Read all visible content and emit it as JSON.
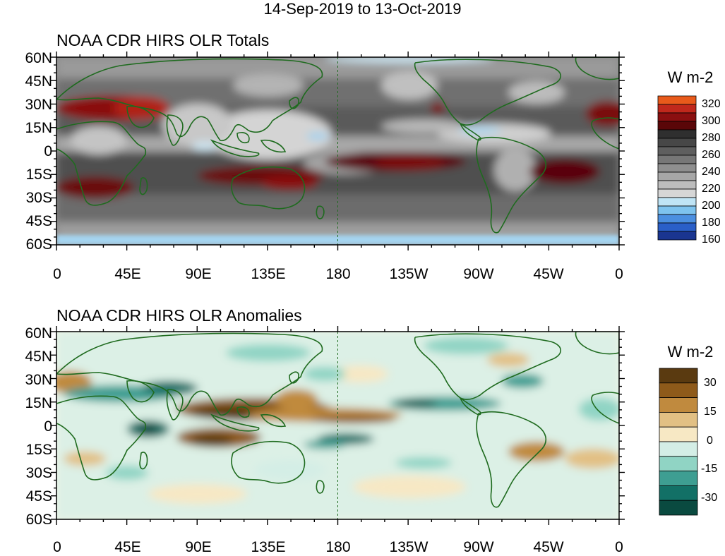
{
  "figure_title": "14-Sep-2019 to 13-Oct-2019",
  "lat_labels": [
    "60N",
    "45N",
    "30N",
    "15N",
    "0",
    "15S",
    "30S",
    "45S",
    "60S"
  ],
  "lon_labels": [
    "0",
    "45E",
    "90E",
    "135E",
    "180",
    "135W",
    "90W",
    "45W",
    "0"
  ],
  "panels": [
    {
      "title": "NOAA CDR HIRS OLR Totals",
      "colorbar_units": "W m-2",
      "colorbar_labels": [
        "320",
        "300",
        "280",
        "260",
        "240",
        "220",
        "200",
        "180",
        "160"
      ],
      "colorbar_colors": [
        "#e85a1b",
        "#c0281c",
        "#8a0f10",
        "#5a0608",
        "#2f2f2f",
        "#474747",
        "#5f5f5f",
        "#777777",
        "#8f8f8f",
        "#a7a7a7",
        "#bdbdbd",
        "#d6d6d6",
        "#bfe4f5",
        "#7ec3ee",
        "#4b8fe0",
        "#2a5fc8",
        "#1a3590"
      ]
    },
    {
      "title": "NOAA CDR HIRS OLR Anomalies",
      "colorbar_units": "W m-2",
      "colorbar_labels": [
        "30",
        "15",
        "0",
        "-15",
        "-30"
      ],
      "colorbar_colors": [
        "#5a3a10",
        "#8e5a1a",
        "#c08a3e",
        "#e2c084",
        "#f7e8c4",
        "#d4eee6",
        "#90d4c4",
        "#3e9e92",
        "#127066",
        "#0a4a40"
      ]
    }
  ]
}
